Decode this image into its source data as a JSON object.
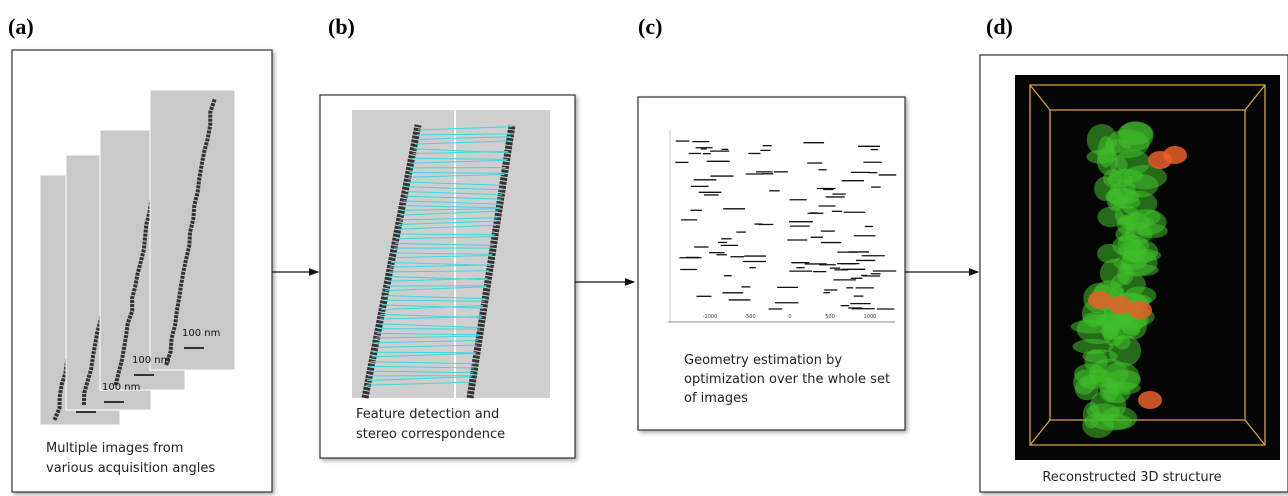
{
  "panels": [
    {
      "label": "(a)",
      "caption": [
        "Multiple images from",
        "various acquisition angles"
      ],
      "scale_labels": [
        "100 nm",
        "100 nm",
        "100 nm"
      ]
    },
    {
      "label": "(b)",
      "caption": [
        "Feature detection and",
        "stereo correspondence"
      ]
    },
    {
      "label": "(c)",
      "caption": [
        "Geometry estimation by",
        "optimization over the whole set",
        "of images"
      ],
      "x_tick_labels": [
        "-1000",
        "-500",
        "0",
        "500",
        "1000"
      ]
    },
    {
      "label": "(d)",
      "caption": [
        "Reconstructed 3D structure"
      ]
    }
  ]
}
